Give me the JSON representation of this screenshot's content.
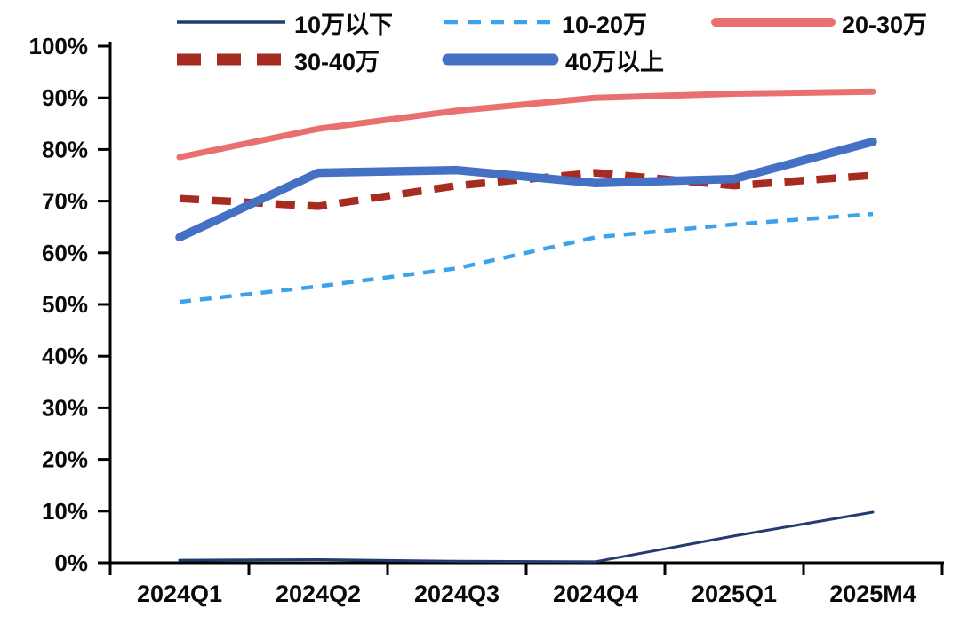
{
  "legend": {
    "items": [
      {
        "label": "10万以下",
        "color": "#223C72"
      },
      {
        "label": "10-20万",
        "color": "#3DA2EC"
      },
      {
        "label": "20-30万",
        "color": "#EA7070"
      },
      {
        "label": "30-40万",
        "color": "#A52C1F"
      },
      {
        "label": "40万以上",
        "color": "#4571C4"
      }
    ]
  },
  "chart_data": {
    "type": "line",
    "title": "",
    "categories": [
      "2024Q1",
      "2024Q2",
      "2024Q3",
      "2024Q4",
      "2025Q1",
      "2025M4"
    ],
    "series": [
      {
        "key": "below-100k",
        "name": "10万以下",
        "color": "#223C72",
        "width": 3,
        "dash": null,
        "values": [
          0.5,
          0.6,
          0.3,
          0.2,
          5.2,
          9.8
        ]
      },
      {
        "key": "100k-200k",
        "name": "10-20万",
        "color": "#3DA2EC",
        "width": 4.5,
        "dash": "13 10",
        "values": [
          50.5,
          53.5,
          57,
          63,
          65.5,
          67.5
        ]
      },
      {
        "key": "200k-300k",
        "name": "20-30万",
        "color": "#EA7070",
        "width": 7,
        "dash": null,
        "values": [
          78.5,
          84,
          87.5,
          90,
          90.8,
          91.2
        ]
      },
      {
        "key": "300k-400k",
        "name": "30-40万",
        "color": "#A52C1F",
        "width": 8.5,
        "dash": "22 14",
        "values": [
          70.5,
          69,
          73,
          75.5,
          73,
          75
        ]
      },
      {
        "key": "above-400k",
        "name": "40万以上",
        "color": "#4571C4",
        "width": 9.5,
        "dash": null,
        "values": [
          63,
          75.5,
          76,
          73.5,
          74.3,
          81.5
        ]
      }
    ],
    "xlabel": "",
    "ylabel": "",
    "ylim": [
      0,
      100
    ],
    "ytick_labels": [
      "100%",
      "90%",
      "80%",
      "70%",
      "60%",
      "50%",
      "40%",
      "30%",
      "20%",
      "10%",
      "0%"
    ],
    "grid": false,
    "legend_position": "top"
  }
}
